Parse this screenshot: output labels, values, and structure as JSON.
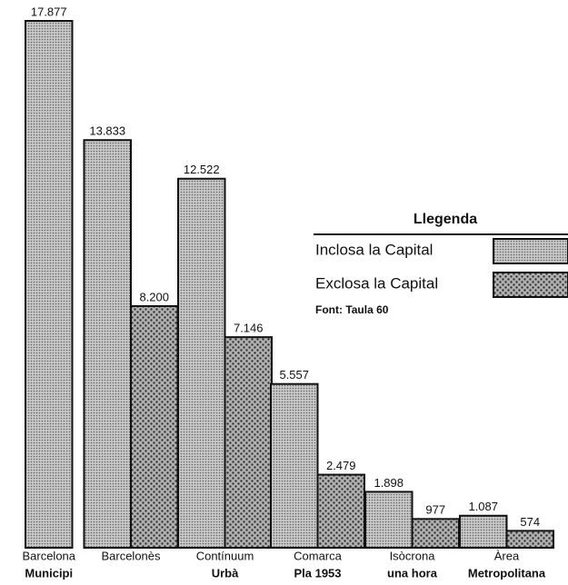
{
  "chart_data": {
    "type": "bar",
    "categories": [
      [
        "Barcelona",
        "Municipi"
      ],
      [
        "Barcelonès"
      ],
      [
        "Contínuum",
        "Urbà"
      ],
      [
        "Comarca",
        "Pla 1953"
      ],
      [
        "Isòcrona",
        "una hora"
      ],
      [
        "Àrea",
        "Metropolitana"
      ]
    ],
    "series": [
      {
        "name": "Inclosa la Capital",
        "color": "#c8c8c8",
        "values": [
          17877,
          13833,
          12522,
          5557,
          1898,
          1087
        ],
        "value_labels": [
          "17.877",
          "13.833",
          "12.522",
          "5.557",
          "1.898",
          "1.087"
        ]
      },
      {
        "name": "Exclosa la Capital",
        "color": "#b0b0b0",
        "values": [
          null,
          8200,
          7146,
          2479,
          977,
          574
        ],
        "value_labels": [
          null,
          "8.200",
          "7.146",
          "2.479",
          "977",
          "574"
        ]
      }
    ],
    "legend_title": "Llegenda",
    "source": "Font: Taula 60",
    "legend": "right"
  }
}
